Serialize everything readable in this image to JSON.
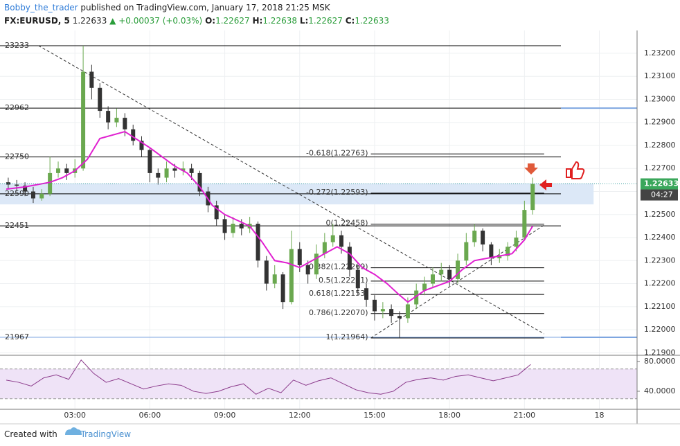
{
  "header": {
    "author": "Bobby_the_trader",
    "published": "published on TradingView.com, January 17, 2018 21:25 MSK",
    "symbol": "FX:EURUSD, 5",
    "last": "1.22633",
    "change": "▲ +0.00037 (+0.03%)",
    "ohlc": [
      {
        "label": "O:",
        "value": "1.22627"
      },
      {
        "label": "H:",
        "value": "1.22638"
      },
      {
        "label": "L:",
        "value": "1.22627"
      },
      {
        "label": "C:",
        "value": "1.22633"
      }
    ]
  },
  "footer": {
    "created": "Created with",
    "brand": "TradingView"
  },
  "chart_data": {
    "type": "candlestick",
    "grid": true,
    "xlim": [
      0,
      25.51
    ],
    "ylim": [
      1.21892,
      1.23299
    ],
    "xticks": [
      {
        "value": 3,
        "label": "03:00"
      },
      {
        "value": 6,
        "label": "06:00"
      },
      {
        "value": 9,
        "label": "09:00"
      },
      {
        "value": 12,
        "label": "12:00"
      },
      {
        "value": 15,
        "label": "15:00"
      },
      {
        "value": 18,
        "label": "18:00"
      },
      {
        "value": 21,
        "label": "21:00"
      },
      {
        "value": 24,
        "label": "18"
      }
    ],
    "yticks": [
      {
        "value": 1.219,
        "label": "1.21900"
      },
      {
        "value": 1.22,
        "label": "1.22000"
      },
      {
        "value": 1.221,
        "label": "1.22100"
      },
      {
        "value": 1.222,
        "label": "1.22200"
      },
      {
        "value": 1.223,
        "label": "1.22300"
      },
      {
        "value": 1.224,
        "label": "1.22400"
      },
      {
        "value": 1.225,
        "label": "1.22500"
      },
      {
        "value": 1.226,
        "label": "1.22600"
      },
      {
        "value": 1.227,
        "label": "1.22700"
      },
      {
        "value": 1.228,
        "label": "1.22800"
      },
      {
        "value": 1.229,
        "label": "1.22900"
      },
      {
        "value": 1.23,
        "label": "1.23000"
      },
      {
        "value": 1.231,
        "label": "1.23100"
      },
      {
        "value": 1.232,
        "label": "1.23200"
      }
    ],
    "up_color": "#6aa84f",
    "down_color": "#333333",
    "x": [
      0.33,
      0.67,
      1,
      1.33,
      1.67,
      2,
      2.33,
      2.67,
      3,
      3.33,
      3.67,
      4,
      4.33,
      4.67,
      5,
      5.33,
      5.67,
      6,
      6.33,
      6.67,
      7,
      7.33,
      7.67,
      8,
      8.33,
      8.67,
      9,
      9.33,
      9.67,
      10,
      10.33,
      10.67,
      11,
      11.33,
      11.67,
      12,
      12.33,
      12.67,
      13,
      13.33,
      13.67,
      14,
      14.33,
      14.67,
      15,
      15.33,
      15.67,
      16,
      16.33,
      16.67,
      17,
      17.33,
      17.67,
      18,
      18.33,
      18.67,
      19,
      19.33,
      19.67,
      20,
      20.33,
      20.67,
      21,
      21.33
    ],
    "open": [
      1.2264,
      1.2263,
      1.22625,
      1.226,
      1.2257,
      1.2259,
      1.2268,
      1.227,
      1.2268,
      1.227,
      1.2312,
      1.2305,
      1.2295,
      1.229,
      1.2292,
      1.2287,
      1.2282,
      1.2278,
      1.2268,
      1.2266,
      1.227,
      1.2269,
      1.227,
      1.2268,
      1.226,
      1.2254,
      1.2248,
      1.2242,
      1.2246,
      1.2244,
      1.2246,
      1.223,
      1.222,
      1.2224,
      1.2212,
      1.2235,
      1.2228,
      1.2224,
      1.2233,
      1.2238,
      1.2241,
      1.2236,
      1.2226,
      1.2218,
      1.2213,
      1.2208,
      1.2209,
      1.2206,
      1.2205,
      1.2211,
      1.2217,
      1.222,
      1.2224,
      1.2226,
      1.2222,
      1.223,
      1.2238,
      1.2243,
      1.2237,
      1.2231,
      1.2232,
      1.2236,
      1.224,
      1.2252
    ],
    "high": [
      1.2266,
      1.2265,
      1.2264,
      1.2262,
      1.2261,
      1.2275,
      1.2273,
      1.2272,
      1.2274,
      1.23233,
      1.2315,
      1.2307,
      1.2297,
      1.2296,
      1.2294,
      1.2289,
      1.2284,
      1.2279,
      1.227,
      1.2273,
      1.2272,
      1.2273,
      1.2272,
      1.2269,
      1.2262,
      1.2256,
      1.225,
      1.2249,
      1.2248,
      1.2249,
      1.2247,
      1.2232,
      1.2228,
      1.2225,
      1.2243,
      1.2238,
      1.223,
      1.2237,
      1.2242,
      1.2246,
      1.2243,
      1.2238,
      1.2228,
      1.222,
      1.2215,
      1.2212,
      1.2211,
      1.2208,
      1.2214,
      1.222,
      1.2223,
      1.2227,
      1.2229,
      1.2228,
      1.2233,
      1.2242,
      1.22458,
      1.2244,
      1.2238,
      1.2235,
      1.2238,
      1.2243,
      1.2256,
      1.2266
    ],
    "low": [
      1.2261,
      1.226,
      1.2258,
      1.2255,
      1.2256,
      1.2258,
      1.2266,
      1.2265,
      1.2266,
      1.2269,
      1.23,
      1.2292,
      1.2287,
      1.2288,
      1.2284,
      1.228,
      1.2275,
      1.2264,
      1.2263,
      1.2264,
      1.2266,
      1.2267,
      1.2265,
      1.2258,
      1.2251,
      1.2245,
      1.2239,
      1.224,
      1.2241,
      1.2242,
      1.2227,
      1.2217,
      1.2218,
      1.2209,
      1.2211,
      1.2225,
      1.222,
      1.2222,
      1.2231,
      1.2236,
      1.2233,
      1.2223,
      1.2215,
      1.221,
      1.2204,
      1.2205,
      1.2203,
      1.21964,
      1.2203,
      1.2209,
      1.2215,
      1.2218,
      1.2221,
      1.2219,
      1.222,
      1.2228,
      1.2236,
      1.2234,
      1.2228,
      1.2229,
      1.223,
      1.2234,
      1.2239,
      1.225
    ],
    "close": [
      1.2263,
      1.22625,
      1.226,
      1.2257,
      1.2259,
      1.2268,
      1.227,
      1.2268,
      1.227,
      1.2312,
      1.2305,
      1.2295,
      1.229,
      1.2292,
      1.2287,
      1.2282,
      1.2278,
      1.2268,
      1.2266,
      1.227,
      1.2269,
      1.227,
      1.2268,
      1.226,
      1.2254,
      1.2248,
      1.2242,
      1.2246,
      1.2244,
      1.2246,
      1.223,
      1.222,
      1.2224,
      1.2212,
      1.2235,
      1.2228,
      1.2224,
      1.2233,
      1.2238,
      1.2241,
      1.2236,
      1.2226,
      1.2218,
      1.2213,
      1.2208,
      1.2209,
      1.2206,
      1.2205,
      1.2211,
      1.2217,
      1.222,
      1.2224,
      1.2226,
      1.2222,
      1.223,
      1.2238,
      1.2243,
      1.2237,
      1.2231,
      1.2232,
      1.2236,
      1.224,
      1.2252,
      1.22633
    ],
    "moving_average": {
      "color": "#e020d0",
      "x": [
        0.25,
        1,
        2,
        2.5,
        3,
        3.5,
        4,
        5,
        6,
        7,
        7.5,
        8,
        8.5,
        9,
        10,
        10.5,
        11,
        11.5,
        12,
        13,
        13.5,
        14,
        14.5,
        15,
        15.5,
        16,
        16.33,
        17,
        18,
        18.5,
        19,
        20,
        20.5,
        21,
        21.33
      ],
      "values": [
        1.2261,
        1.2262,
        1.2264,
        1.2266,
        1.2269,
        1.2274,
        1.2283,
        1.2286,
        1.2279,
        1.2271,
        1.2268,
        1.2262,
        1.2254,
        1.225,
        1.2245,
        1.2238,
        1.223,
        1.2229,
        1.2227,
        1.2233,
        1.2236,
        1.2233,
        1.2227,
        1.2224,
        1.222,
        1.2215,
        1.2212,
        1.2217,
        1.2221,
        1.2226,
        1.223,
        1.2232,
        1.2233,
        1.2239,
        1.2245
      ]
    },
    "levels": [
      {
        "value": 1.23233,
        "label": "23233",
        "color": "#000000"
      },
      {
        "value": 1.22962,
        "label": "22962",
        "color": "#000000",
        "extend": true
      },
      {
        "value": 1.2275,
        "label": "22750",
        "color": "#000000"
      },
      {
        "value": 1.2259,
        "label": "22590",
        "color": "#000000"
      },
      {
        "value": 1.22451,
        "label": "22451",
        "color": "#000000"
      },
      {
        "value": 1.21967,
        "label": "21967",
        "color": "#7ea6e0",
        "extend": true
      }
    ],
    "extension_color": "#7ea6e0",
    "zone": {
      "x": [
        0,
        23.77
      ],
      "values": [
        1.22544,
        1.22635
      ],
      "color": "#dce8f7"
    },
    "fib": {
      "x": [
        14.85,
        21.79
      ],
      "levels": [
        {
          "value": 1.22763,
          "label": "-0.618(1.22763)"
        },
        {
          "value": 1.22593,
          "label": "-0.272(1.22593)"
        },
        {
          "value": 1.22458,
          "label": "0(1.22458)"
        },
        {
          "value": 1.22269,
          "label": "0.382(1.22269)"
        },
        {
          "value": 1.22211,
          "label": "0.5(1.22211)"
        },
        {
          "value": 1.22153,
          "label": "0.618(1.22153)"
        },
        {
          "value": 1.2207,
          "label": "0.786(1.22070)"
        },
        {
          "value": 1.21964,
          "label": "1(1.21964)"
        }
      ]
    },
    "trend_lines": [
      {
        "x": [
          1.54,
          21.79
        ],
        "values": [
          1.23233,
          1.21982
        ]
      },
      {
        "x": [
          14.85,
          21.79
        ],
        "values": [
          1.21964,
          1.22454
        ]
      }
    ],
    "last_price": {
      "value": 1.22633,
      "label": "1.22633",
      "color": "#3aa75b"
    },
    "countdown": "04:27",
    "rsi": {
      "color": "#8b3a8b",
      "band_color": "#efe3f7",
      "ylim": [
        16.7,
        87.4
      ],
      "bands": [
        30,
        70
      ],
      "yticks": [
        {
          "value": 40,
          "label": "40.0000"
        },
        {
          "value": 80,
          "label": "80.0000"
        }
      ],
      "x": [
        0.25,
        0.75,
        1.25,
        1.75,
        2.25,
        2.75,
        3.25,
        3.75,
        4.25,
        4.75,
        5.25,
        5.75,
        6.25,
        6.75,
        7.25,
        7.75,
        8.25,
        8.75,
        9.25,
        9.75,
        10.25,
        10.75,
        11.25,
        11.75,
        12.25,
        12.75,
        13.25,
        13.75,
        14.25,
        14.75,
        15.25,
        15.75,
        16.25,
        16.75,
        17.25,
        17.75,
        18.25,
        18.75,
        19.25,
        19.75,
        20.25,
        20.75,
        21.25
      ],
      "values": [
        55,
        52,
        47,
        58,
        62,
        56,
        82,
        64,
        52,
        57,
        50,
        43,
        47,
        50,
        48,
        40,
        37,
        40,
        46,
        50,
        36,
        44,
        38,
        55,
        48,
        54,
        58,
        50,
        42,
        38,
        36,
        40,
        52,
        56,
        58,
        55,
        60,
        62,
        58,
        54,
        58,
        62,
        76
      ]
    }
  }
}
